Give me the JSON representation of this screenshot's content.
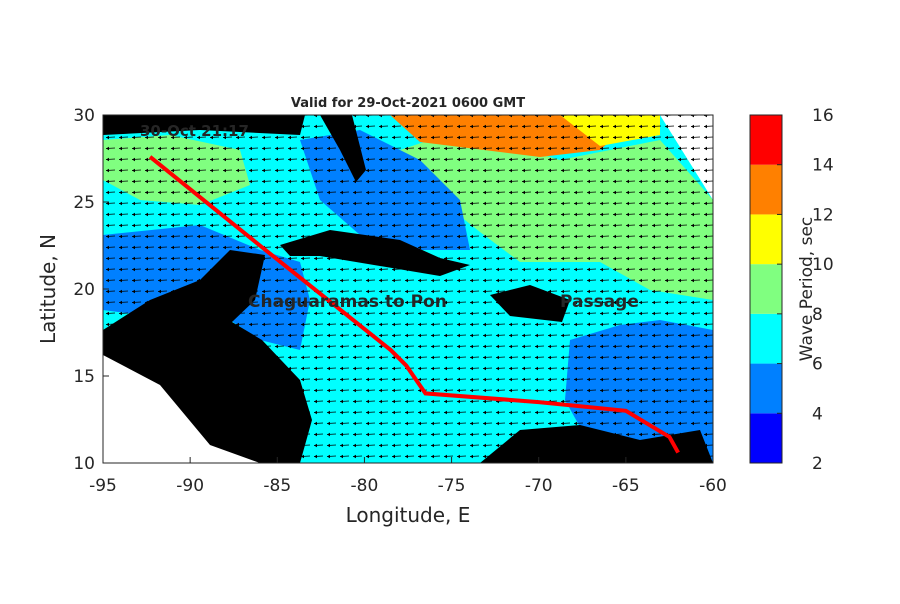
{
  "chart_data": {
    "type": "map",
    "title": "Valid for 29-Oct-2021 0600 GMT",
    "xlabel": "Longitude, E",
    "ylabel": "Latitude, N",
    "xlim": [
      -95,
      -60
    ],
    "ylim": [
      10,
      30
    ],
    "xticks": [
      -95,
      -90,
      -85,
      -80,
      -75,
      -70,
      -65,
      -60
    ],
    "yticks": [
      10,
      15,
      20,
      25,
      30
    ],
    "colorbar": {
      "label": "Wave Period, sec",
      "lim": [
        2,
        16
      ],
      "ticks": [
        2,
        4,
        6,
        8,
        10,
        12,
        14,
        16
      ],
      "colors": [
        "#0000ff",
        "#0080ff",
        "#00ffff",
        "#80ff80",
        "#ffff00",
        "#ff8000",
        "#ff0000"
      ]
    },
    "route": {
      "color": "#ff0000",
      "lon": [
        -92.3,
        -86,
        -78.5,
        -77.6,
        -76.5,
        -70,
        -65,
        -62.5,
        -62
      ],
      "lat": [
        27.6,
        22.5,
        16.5,
        15.6,
        14,
        13.5,
        13,
        11.5,
        10.6
      ]
    },
    "annotations": [
      "30-Oct 21:17",
      "Chaguaramas to Pon",
      "Passage"
    ]
  }
}
